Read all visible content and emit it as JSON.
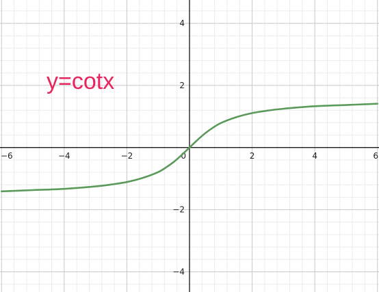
{
  "chart_data": {
    "type": "line",
    "title": "",
    "xlabel": "",
    "ylabel": "",
    "xlim": [
      -6.05,
      6.05
    ],
    "ylim": [
      -4.65,
      4.75
    ],
    "grid": true,
    "x_ticks": [
      -6,
      -4,
      -2,
      0,
      2,
      4,
      6
    ],
    "y_ticks": [
      -4,
      -2,
      2,
      4
    ],
    "x_tick_labels": [
      "−6",
      "−4",
      "−2",
      "0",
      "2",
      "4",
      "6"
    ],
    "y_tick_labels": [
      "−4",
      "−2",
      "2",
      "4"
    ],
    "annotation": "y=cotx",
    "series": [
      {
        "color": "#5b9a5b",
        "x": [
          -6,
          -5,
          -4,
          -3,
          -2.5,
          -2,
          -1.5,
          -1,
          -0.75,
          -0.5,
          -0.25,
          0,
          0.25,
          0.5,
          0.75,
          1,
          1.5,
          2,
          2.5,
          3,
          4,
          5,
          6
        ],
        "y": [
          -1.41,
          -1.37,
          -1.33,
          -1.25,
          -1.19,
          -1.11,
          -0.98,
          -0.79,
          -0.64,
          -0.46,
          -0.24,
          0,
          0.24,
          0.46,
          0.64,
          0.79,
          0.98,
          1.11,
          1.19,
          1.25,
          1.33,
          1.37,
          1.41
        ]
      }
    ]
  },
  "colors": {
    "grid_major": "#c8c8c8",
    "grid_minor": "#ececec",
    "axis": "#000000",
    "annotation": "#e8265e"
  }
}
